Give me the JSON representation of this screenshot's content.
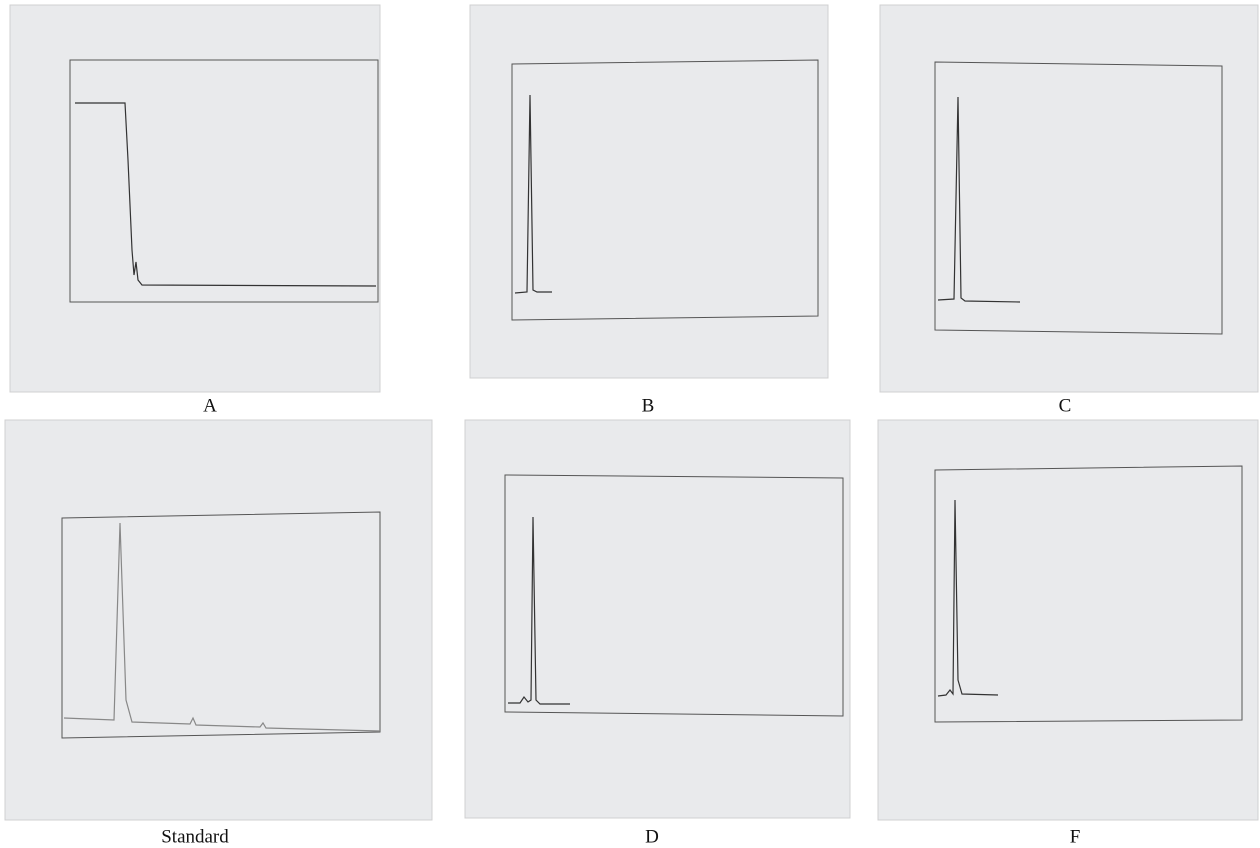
{
  "panels": [
    {
      "label": "A"
    },
    {
      "label": "B"
    },
    {
      "label": "C"
    },
    {
      "label": "Standard"
    },
    {
      "label": "D"
    },
    {
      "label": "F"
    }
  ]
}
